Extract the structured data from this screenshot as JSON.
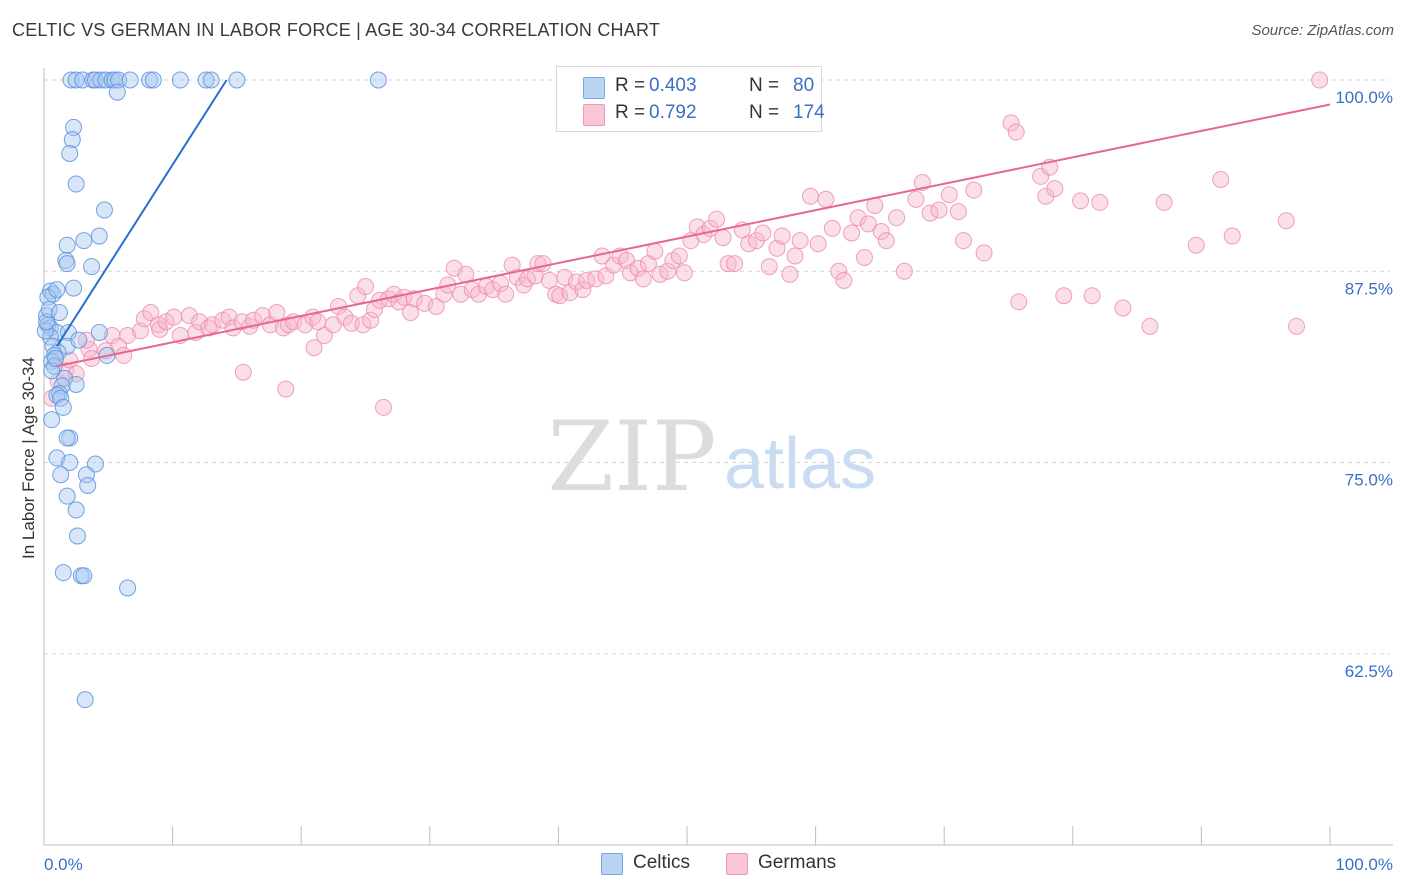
{
  "header": {
    "title": "CELTIC VS GERMAN IN LABOR FORCE | AGE 30-34 CORRELATION CHART",
    "source": "Source: ZipAtlas.com"
  },
  "legend": {
    "rows": [
      {
        "r_label": "R =",
        "r_value": "0.403",
        "n_label": "N =",
        "n_value": "80"
      },
      {
        "r_label": "R =",
        "r_value": "0.792",
        "n_label": "N =",
        "n_value": "174"
      }
    ]
  },
  "bottom_legend": {
    "items": [
      {
        "label": "Celtics"
      },
      {
        "label": "Germans"
      }
    ]
  },
  "watermark": {
    "zip": "ZIP",
    "atlas": "atlas"
  },
  "colors": {
    "blue_fill": "#a8c8f0",
    "blue_stroke": "#5b93de",
    "blue_line": "#2a6fd0",
    "pink_fill": "#f7b8cc",
    "pink_stroke": "#ee8fae",
    "pink_line": "#e8678f",
    "tick_text": "#3a6fc4",
    "grid": "#d6d6d6",
    "axis": "#bdbdbd"
  },
  "chart_data": {
    "type": "scatter",
    "title": "CELTIC VS GERMAN IN LABOR FORCE | AGE 30-34 CORRELATION CHART",
    "xlabel": "",
    "ylabel": "In Labor Force | Age 30-34",
    "xlim": [
      0,
      100
    ],
    "ylim": [
      50,
      100
    ],
    "x_tick_labels": [
      "0.0%",
      "100.0%"
    ],
    "y_ticks": [
      62.5,
      75.0,
      87.5,
      100.0
    ],
    "y_tick_labels": [
      "62.5%",
      "75.0%",
      "87.5%",
      "100.0%"
    ],
    "grid": true,
    "series": [
      {
        "name": "Celtics",
        "color": "#5b93de",
        "r": 0.403,
        "n": 80,
        "trend": [
          [
            1.0,
            82.6
          ],
          [
            14.2,
            100.0
          ]
        ],
        "points": [
          [
            2.1,
            100
          ],
          [
            2.5,
            100
          ],
          [
            3.0,
            100
          ],
          [
            3.8,
            100
          ],
          [
            4.0,
            100
          ],
          [
            4.4,
            100
          ],
          [
            4.8,
            100
          ],
          [
            5.3,
            100
          ],
          [
            5.5,
            100
          ],
          [
            5.8,
            100
          ],
          [
            6.7,
            100
          ],
          [
            8.2,
            100
          ],
          [
            8.5,
            100
          ],
          [
            10.6,
            100
          ],
          [
            12.6,
            100
          ],
          [
            13.0,
            100
          ],
          [
            15.0,
            100
          ],
          [
            26.0,
            100
          ],
          [
            5.7,
            99.2
          ],
          [
            2.3,
            96.9
          ],
          [
            2.2,
            96.1
          ],
          [
            2.0,
            95.2
          ],
          [
            2.5,
            93.2
          ],
          [
            4.7,
            91.5
          ],
          [
            4.3,
            89.8
          ],
          [
            3.1,
            89.5
          ],
          [
            1.8,
            89.2
          ],
          [
            1.7,
            88.2
          ],
          [
            1.8,
            88.0
          ],
          [
            3.7,
            87.8
          ],
          [
            2.3,
            86.4
          ],
          [
            0.5,
            86.2
          ],
          [
            0.7,
            86.0
          ],
          [
            0.3,
            85.8
          ],
          [
            1.0,
            86.3
          ],
          [
            0.2,
            84.6
          ],
          [
            0.3,
            84.0
          ],
          [
            0.5,
            83.8
          ],
          [
            1.0,
            83.5
          ],
          [
            1.9,
            83.5
          ],
          [
            4.3,
            83.5
          ],
          [
            0.5,
            83.2
          ],
          [
            0.7,
            82.6
          ],
          [
            1.8,
            82.6
          ],
          [
            1.1,
            82.2
          ],
          [
            0.8,
            82.0
          ],
          [
            4.9,
            82.0
          ],
          [
            0.6,
            81.6
          ],
          [
            0.8,
            81.3
          ],
          [
            0.6,
            81.0
          ],
          [
            1.6,
            80.5
          ],
          [
            2.5,
            80.1
          ],
          [
            1.4,
            80.0
          ],
          [
            1.2,
            79.5
          ],
          [
            1.0,
            79.4
          ],
          [
            1.3,
            79.2
          ],
          [
            1.5,
            78.6
          ],
          [
            0.6,
            77.8
          ],
          [
            2.0,
            76.6
          ],
          [
            1.8,
            76.6
          ],
          [
            1.0,
            75.3
          ],
          [
            2.0,
            75.0
          ],
          [
            4.0,
            74.9
          ],
          [
            1.3,
            74.2
          ],
          [
            3.3,
            74.2
          ],
          [
            3.4,
            73.5
          ],
          [
            1.8,
            72.8
          ],
          [
            2.5,
            71.9
          ],
          [
            2.6,
            70.2
          ],
          [
            1.5,
            67.8
          ],
          [
            2.9,
            67.6
          ],
          [
            3.1,
            67.6
          ],
          [
            6.5,
            66.8
          ],
          [
            3.2,
            59.5
          ],
          [
            0.1,
            83.6
          ],
          [
            0.2,
            84.2
          ],
          [
            0.4,
            85.0
          ],
          [
            1.2,
            84.8
          ],
          [
            2.7,
            83.0
          ],
          [
            0.9,
            81.8
          ]
        ]
      },
      {
        "name": "Germans",
        "color": "#ee8fae",
        "r": 0.792,
        "n": 174,
        "trend": [
          [
            1.0,
            81.3
          ],
          [
            100.0,
            98.4
          ]
        ],
        "points": [
          [
            0.6,
            79.2
          ],
          [
            1.1,
            80.3
          ],
          [
            1.7,
            81.0
          ],
          [
            2.0,
            81.7
          ],
          [
            2.5,
            80.8
          ],
          [
            3.5,
            82.4
          ],
          [
            3.3,
            83.0
          ],
          [
            3.7,
            81.8
          ],
          [
            4.8,
            82.3
          ],
          [
            5.3,
            83.3
          ],
          [
            5.8,
            82.6
          ],
          [
            6.2,
            82.0
          ],
          [
            6.5,
            83.3
          ],
          [
            7.5,
            83.6
          ],
          [
            7.8,
            84.4
          ],
          [
            8.3,
            84.8
          ],
          [
            8.9,
            84.0
          ],
          [
            9.0,
            83.7
          ],
          [
            9.5,
            84.2
          ],
          [
            10.1,
            84.5
          ],
          [
            10.6,
            83.3
          ],
          [
            11.3,
            84.6
          ],
          [
            11.8,
            83.5
          ],
          [
            12.1,
            84.2
          ],
          [
            12.8,
            83.8
          ],
          [
            13.1,
            84.0
          ],
          [
            13.9,
            84.3
          ],
          [
            14.4,
            84.5
          ],
          [
            14.7,
            83.8
          ],
          [
            15.4,
            84.2
          ],
          [
            16.0,
            83.9
          ],
          [
            16.3,
            84.3
          ],
          [
            17.0,
            84.6
          ],
          [
            17.6,
            84.0
          ],
          [
            18.1,
            84.8
          ],
          [
            18.6,
            83.8
          ],
          [
            19.0,
            84.0
          ],
          [
            19.4,
            84.2
          ],
          [
            20.3,
            84.0
          ],
          [
            20.9,
            84.5
          ],
          [
            21.3,
            84.2
          ],
          [
            21.8,
            83.3
          ],
          [
            22.5,
            84.0
          ],
          [
            22.9,
            85.2
          ],
          [
            23.4,
            84.5
          ],
          [
            23.9,
            84.1
          ],
          [
            24.4,
            85.9
          ],
          [
            24.8,
            84.0
          ],
          [
            25.4,
            84.3
          ],
          [
            25.7,
            85.0
          ],
          [
            26.1,
            85.6
          ],
          [
            26.8,
            85.7
          ],
          [
            27.2,
            86.0
          ],
          [
            27.6,
            85.5
          ],
          [
            28.0,
            85.8
          ],
          [
            28.5,
            84.8
          ],
          [
            28.8,
            85.7
          ],
          [
            29.6,
            85.4
          ],
          [
            30.5,
            85.2
          ],
          [
            31.1,
            86.0
          ],
          [
            31.4,
            86.6
          ],
          [
            31.9,
            87.7
          ],
          [
            32.4,
            86.0
          ],
          [
            32.8,
            87.3
          ],
          [
            33.3,
            86.3
          ],
          [
            33.8,
            86.0
          ],
          [
            34.4,
            86.5
          ],
          [
            34.9,
            86.3
          ],
          [
            35.5,
            86.7
          ],
          [
            35.9,
            86.0
          ],
          [
            36.4,
            87.9
          ],
          [
            36.8,
            87.1
          ],
          [
            37.3,
            86.6
          ],
          [
            37.6,
            87.0
          ],
          [
            38.2,
            87.2
          ],
          [
            38.4,
            88.0
          ],
          [
            38.8,
            88.0
          ],
          [
            39.3,
            86.9
          ],
          [
            39.8,
            86.0
          ],
          [
            40.1,
            85.9
          ],
          [
            40.5,
            87.1
          ],
          [
            40.9,
            86.1
          ],
          [
            41.4,
            86.8
          ],
          [
            41.9,
            86.3
          ],
          [
            42.2,
            86.9
          ],
          [
            42.9,
            87.0
          ],
          [
            43.4,
            88.5
          ],
          [
            43.7,
            87.2
          ],
          [
            44.3,
            87.9
          ],
          [
            44.8,
            88.5
          ],
          [
            45.3,
            88.2
          ],
          [
            45.6,
            87.4
          ],
          [
            46.2,
            87.7
          ],
          [
            46.6,
            87.0
          ],
          [
            47.0,
            88.0
          ],
          [
            47.5,
            88.8
          ],
          [
            47.9,
            87.3
          ],
          [
            48.5,
            87.5
          ],
          [
            48.9,
            88.2
          ],
          [
            49.4,
            88.5
          ],
          [
            49.8,
            87.4
          ],
          [
            50.3,
            89.5
          ],
          [
            50.8,
            90.4
          ],
          [
            51.3,
            89.9
          ],
          [
            51.8,
            90.3
          ],
          [
            52.3,
            90.9
          ],
          [
            52.8,
            89.7
          ],
          [
            53.2,
            88.0
          ],
          [
            53.7,
            88.0
          ],
          [
            54.3,
            90.2
          ],
          [
            54.8,
            89.3
          ],
          [
            55.4,
            89.5
          ],
          [
            55.9,
            90.0
          ],
          [
            56.4,
            87.8
          ],
          [
            57.0,
            89.0
          ],
          [
            57.4,
            89.8
          ],
          [
            58.0,
            87.3
          ],
          [
            58.4,
            88.5
          ],
          [
            58.8,
            89.5
          ],
          [
            59.6,
            92.4
          ],
          [
            60.2,
            89.3
          ],
          [
            60.8,
            92.2
          ],
          [
            61.3,
            90.3
          ],
          [
            61.8,
            87.5
          ],
          [
            62.2,
            86.9
          ],
          [
            62.8,
            90.0
          ],
          [
            63.3,
            91.0
          ],
          [
            63.8,
            88.4
          ],
          [
            64.1,
            90.6
          ],
          [
            64.6,
            91.8
          ],
          [
            65.1,
            90.1
          ],
          [
            65.5,
            89.5
          ],
          [
            66.3,
            91.0
          ],
          [
            66.9,
            87.5
          ],
          [
            67.8,
            92.2
          ],
          [
            68.3,
            93.3
          ],
          [
            68.9,
            91.3
          ],
          [
            69.6,
            91.5
          ],
          [
            70.4,
            92.5
          ],
          [
            71.1,
            91.4
          ],
          [
            71.5,
            89.5
          ],
          [
            72.3,
            92.8
          ],
          [
            73.1,
            88.7
          ],
          [
            75.2,
            97.2
          ],
          [
            75.6,
            96.6
          ],
          [
            75.8,
            85.5
          ],
          [
            77.5,
            93.7
          ],
          [
            77.9,
            92.4
          ],
          [
            78.2,
            94.3
          ],
          [
            78.6,
            92.9
          ],
          [
            79.3,
            85.9
          ],
          [
            80.6,
            92.1
          ],
          [
            81.5,
            85.9
          ],
          [
            82.1,
            92.0
          ],
          [
            83.9,
            85.1
          ],
          [
            86.0,
            83.9
          ],
          [
            87.1,
            92.0
          ],
          [
            89.6,
            89.2
          ],
          [
            91.5,
            93.5
          ],
          [
            92.4,
            89.8
          ],
          [
            96.6,
            90.8
          ],
          [
            97.4,
            83.9
          ],
          [
            99.2,
            100.0
          ],
          [
            15.5,
            80.9
          ],
          [
            18.8,
            79.8
          ],
          [
            26.4,
            78.6
          ],
          [
            21.0,
            82.5
          ],
          [
            25.0,
            86.5
          ]
        ]
      }
    ]
  }
}
